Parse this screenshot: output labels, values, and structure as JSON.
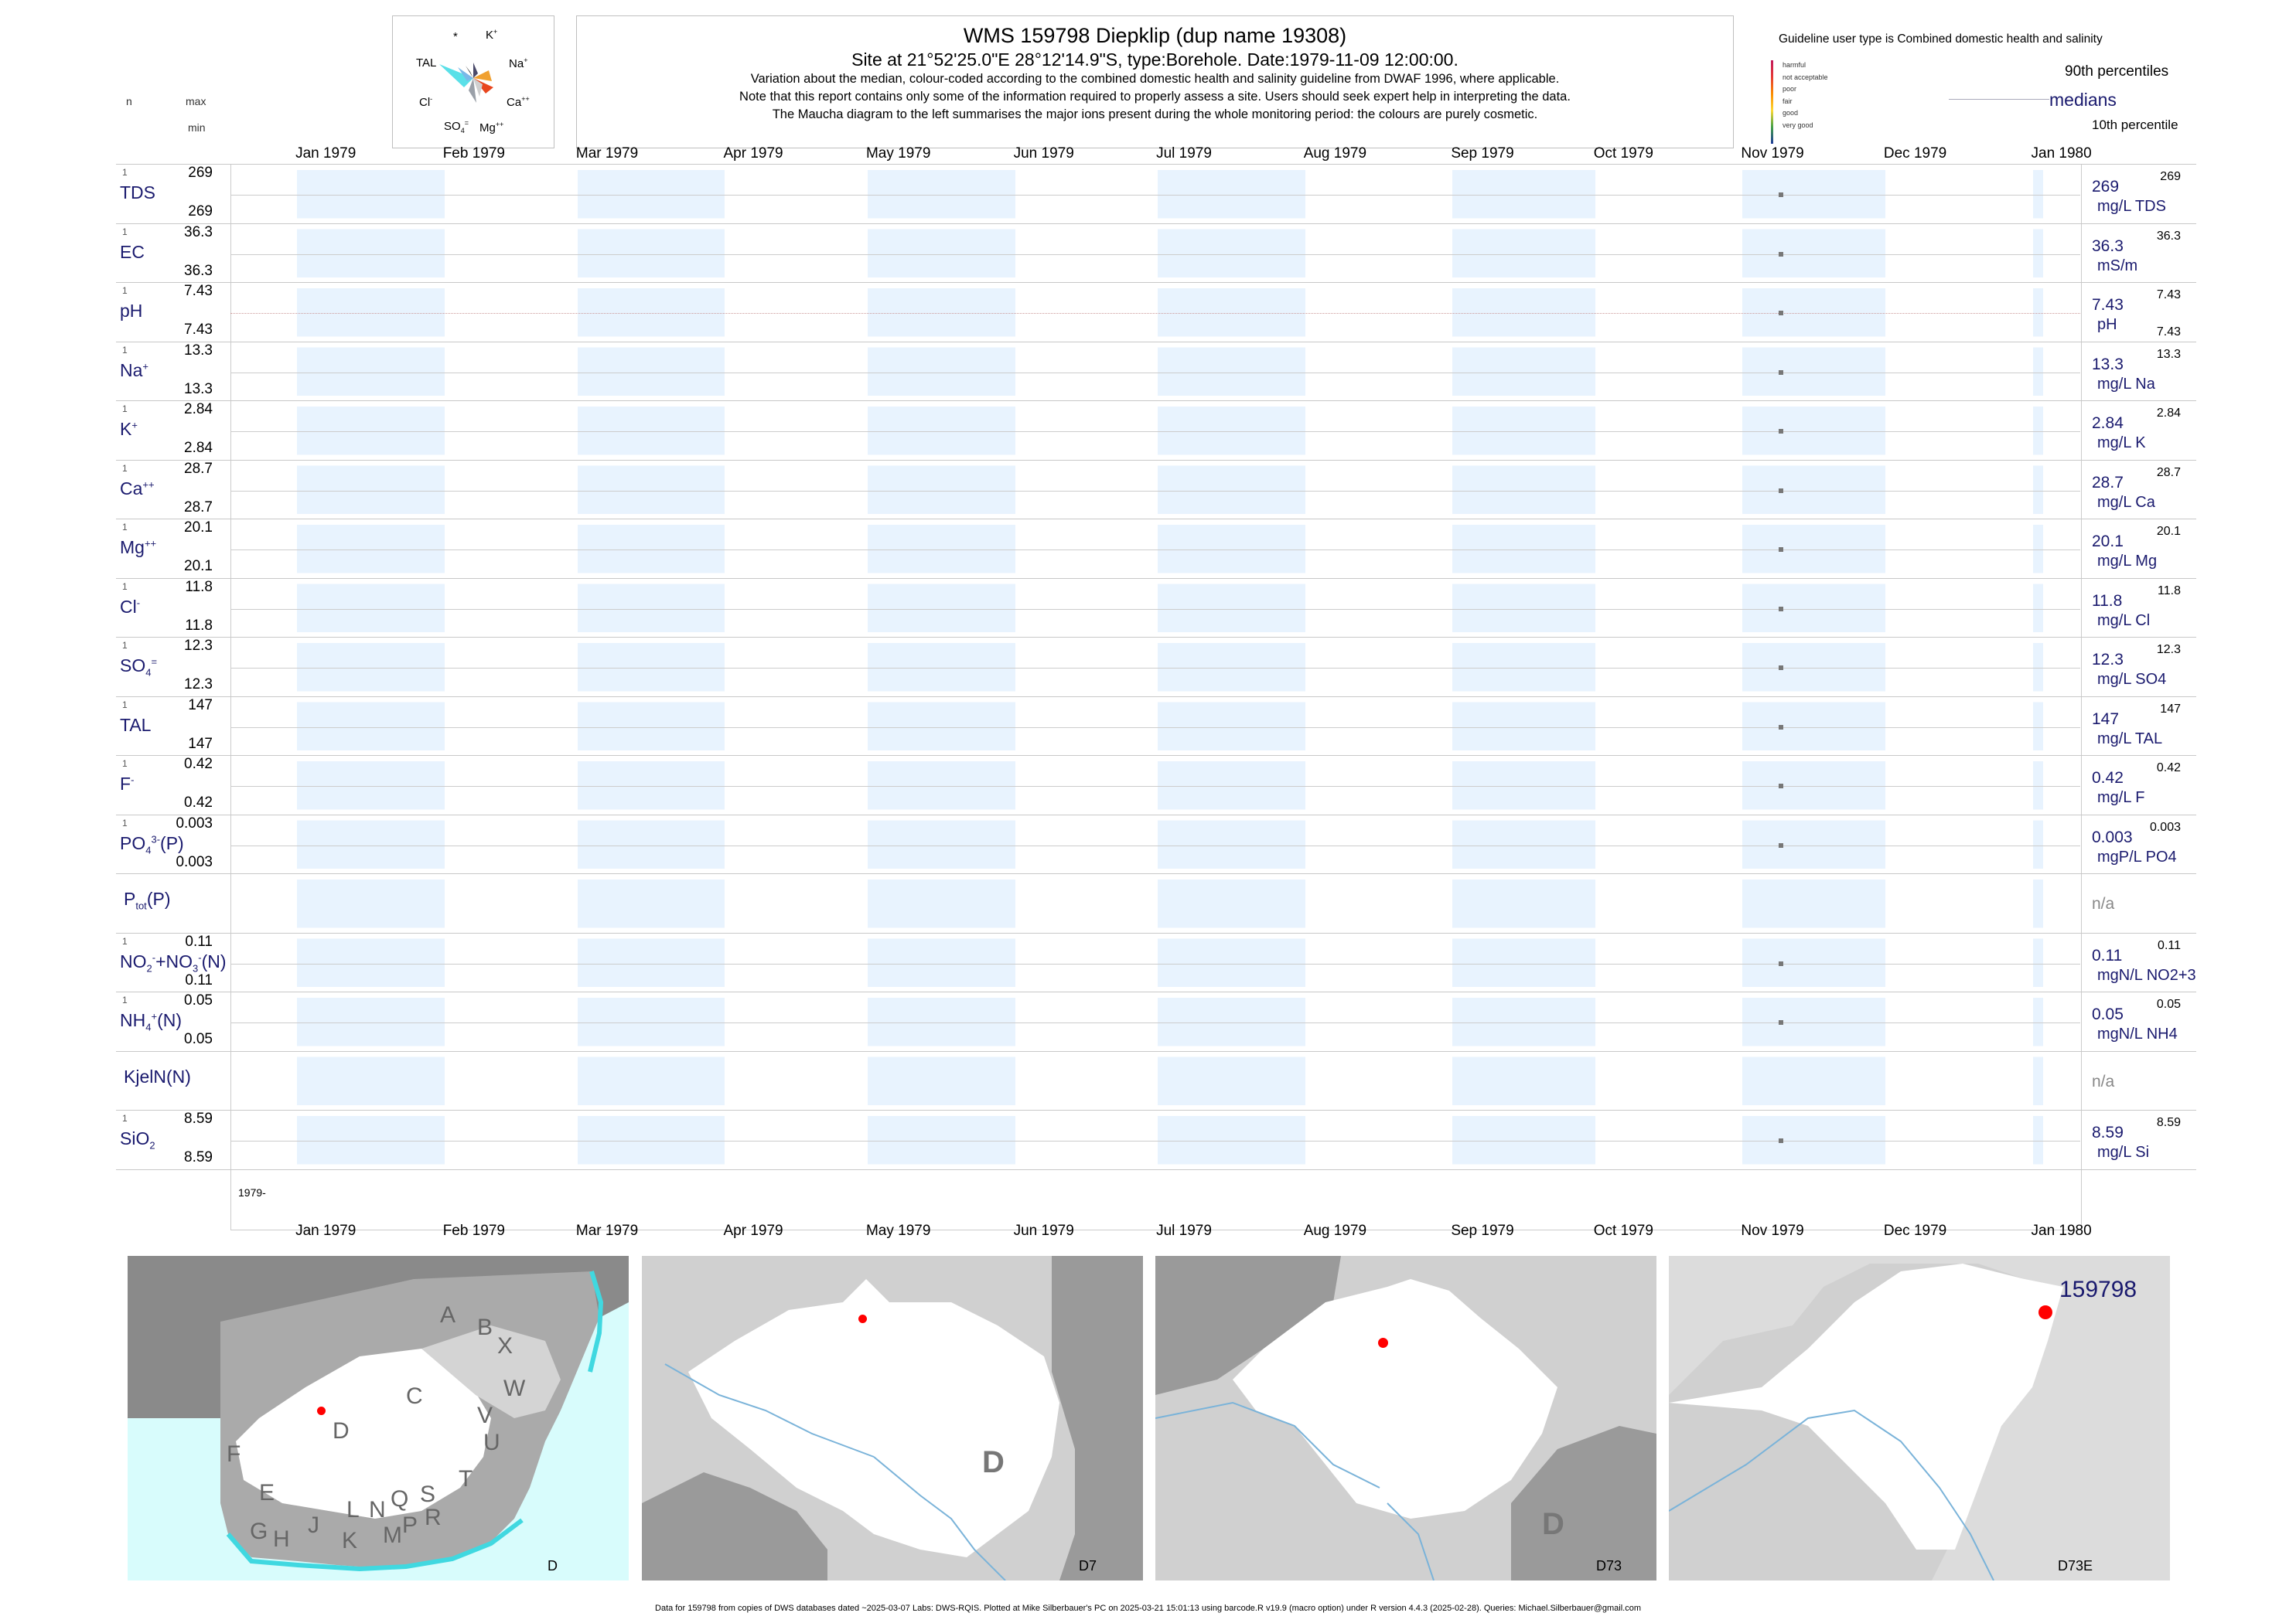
{
  "header": {
    "title": "WMS 159798  Diepklip (dup name 19308)",
    "subtitle": "Site at 21°52'25.0\"E 28°12'14.9\"S, type:Borehole. Date:1979-11-09 12:00:00.",
    "note1": "Variation about the median,  colour-coded according to the combined domestic health and salinity guideline from DWAF 1996, where applicable.",
    "note2": "Note that this report contains only some of the information required to properly assess a site. Users should seek expert help in interpreting the data.",
    "note3": "The Maucha diagram to the left summarises the major ions present during the whole monitoring period: the colours are purely cosmetic."
  },
  "maucha": {
    "star": "*",
    "k": "K",
    "na": "Na",
    "tal": "TAL",
    "cl": "Cl",
    "ca": "Ca",
    "so4": "SO",
    "mg": "Mg"
  },
  "guideline": {
    "title": "Guideline user type is Combined domestic health and salinity",
    "categories": [
      {
        "label": "harmful",
        "color": "#c2185b"
      },
      {
        "label": "not acceptable",
        "color": "#e53935"
      },
      {
        "label": "poor",
        "color": "#fb8c00"
      },
      {
        "label": "fair",
        "color": "#fdd835"
      },
      {
        "label": "good",
        "color": "#43a047"
      },
      {
        "label": "very good",
        "color": "#1e3a9a"
      }
    ],
    "p90": "90th percentiles",
    "medians": "medians",
    "p10": "10th percentile"
  },
  "columns": {
    "n": "n",
    "max": "max",
    "min": "min"
  },
  "months": [
    "Jan 1979",
    "Feb 1979",
    "Mar 1979",
    "Apr 1979",
    "May 1979",
    "Jun 1979",
    "Jul 1979",
    "Aug 1979",
    "Sep 1979",
    "Oct 1979",
    "Nov 1979",
    "Dec 1979",
    "Jan 1980"
  ],
  "year_label": "1979-",
  "chart_data": {
    "type": "scatter",
    "x_axis": "date",
    "xlim": [
      "1978-12-18",
      "1980-01-11"
    ],
    "sample_date": "1979-11-09",
    "series": [
      {
        "name": "TDS",
        "n": "1",
        "max": "269",
        "min": "269",
        "median": "269",
        "unit": "mg/L TDS",
        "right_max": "269",
        "right_min": ""
      },
      {
        "name": "EC",
        "n": "1",
        "max": "36.3",
        "min": "36.3",
        "median": "36.3",
        "unit": "mS/m",
        "right_max": "36.3",
        "right_min": ""
      },
      {
        "name": "pH",
        "n": "1",
        "max": "7.43",
        "min": "7.43",
        "median": "7.43",
        "unit": "pH",
        "right_max": "7.43",
        "right_min": "7.43"
      },
      {
        "name": "Na",
        "n": "1",
        "max": "13.3",
        "min": "13.3",
        "median": "13.3",
        "unit": "mg/L Na",
        "right_max": "13.3",
        "right_min": ""
      },
      {
        "name": "K",
        "n": "1",
        "max": "2.84",
        "min": "2.84",
        "median": "2.84",
        "unit": "mg/L K",
        "right_max": "2.84",
        "right_min": ""
      },
      {
        "name": "Ca",
        "n": "1",
        "max": "28.7",
        "min": "28.7",
        "median": "28.7",
        "unit": "mg/L Ca",
        "right_max": "28.7",
        "right_min": ""
      },
      {
        "name": "Mg",
        "n": "1",
        "max": "20.1",
        "min": "20.1",
        "median": "20.1",
        "unit": "mg/L Mg",
        "right_max": "20.1",
        "right_min": ""
      },
      {
        "name": "Cl",
        "n": "1",
        "max": "11.8",
        "min": "11.8",
        "median": "11.8",
        "unit": "mg/L Cl",
        "right_max": "11.8",
        "right_min": ""
      },
      {
        "name": "SO4",
        "n": "1",
        "max": "12.3",
        "min": "12.3",
        "median": "12.3",
        "unit": "mg/L SO4",
        "right_max": "12.3",
        "right_min": ""
      },
      {
        "name": "TAL",
        "n": "1",
        "max": "147",
        "min": "147",
        "median": "147",
        "unit": "mg/L TAL",
        "right_max": "147",
        "right_min": ""
      },
      {
        "name": "F",
        "n": "1",
        "max": "0.42",
        "min": "0.42",
        "median": "0.42",
        "unit": "mg/L F",
        "right_max": "0.42",
        "right_min": ""
      },
      {
        "name": "PO4(P)",
        "n": "1",
        "max": "0.003",
        "min": "0.003",
        "median": "0.003",
        "unit": "mgP/L PO4",
        "right_max": "0.003",
        "right_min": ""
      },
      {
        "name": "Ptot(P)",
        "n": "",
        "max": "",
        "min": "",
        "median": "n/a",
        "unit": "",
        "right_max": "",
        "right_min": ""
      },
      {
        "name": "NO2+NO3(N)",
        "n": "1",
        "max": "0.11",
        "min": "0.11",
        "median": "0.11",
        "unit": "mgN/L NO2+3",
        "right_max": "0.11",
        "right_min": ""
      },
      {
        "name": "NH4(N)",
        "n": "1",
        "max": "0.05",
        "min": "0.05",
        "median": "0.05",
        "unit": "mgN/L NH4",
        "right_max": "0.05",
        "right_min": ""
      },
      {
        "name": "KjelN(N)",
        "n": "",
        "max": "",
        "min": "",
        "median": "n/a",
        "unit": "",
        "right_max": "",
        "right_min": ""
      },
      {
        "name": "SiO2",
        "n": "1",
        "max": "8.59",
        "min": "8.59",
        "median": "8.59",
        "unit": "mg/L Si",
        "right_max": "8.59",
        "right_min": ""
      }
    ]
  },
  "maps": {
    "regions": [
      "A",
      "B",
      "X",
      "W",
      "C",
      "V",
      "U",
      "T",
      "D",
      "F",
      "E",
      "G",
      "H",
      "J",
      "K",
      "L",
      "M",
      "N",
      "P",
      "Q",
      "R",
      "S"
    ],
    "labels": [
      "D",
      "D7",
      "D73",
      "D73E"
    ],
    "big_d": "D",
    "site": "159798",
    "site_color": "#ff0000"
  },
  "footer": "Data for 159798 from copies of DWS databases dated ~2025-03-07 Labs: DWS-RQIS. Plotted at Mike Silberbauer's PC on 2025-03-21 15:01:13 using barcode.R v19.9 (macro option) under R version 4.4.3 (2025-02-28). Queries: Michael.Silberbauer@gmail.com"
}
